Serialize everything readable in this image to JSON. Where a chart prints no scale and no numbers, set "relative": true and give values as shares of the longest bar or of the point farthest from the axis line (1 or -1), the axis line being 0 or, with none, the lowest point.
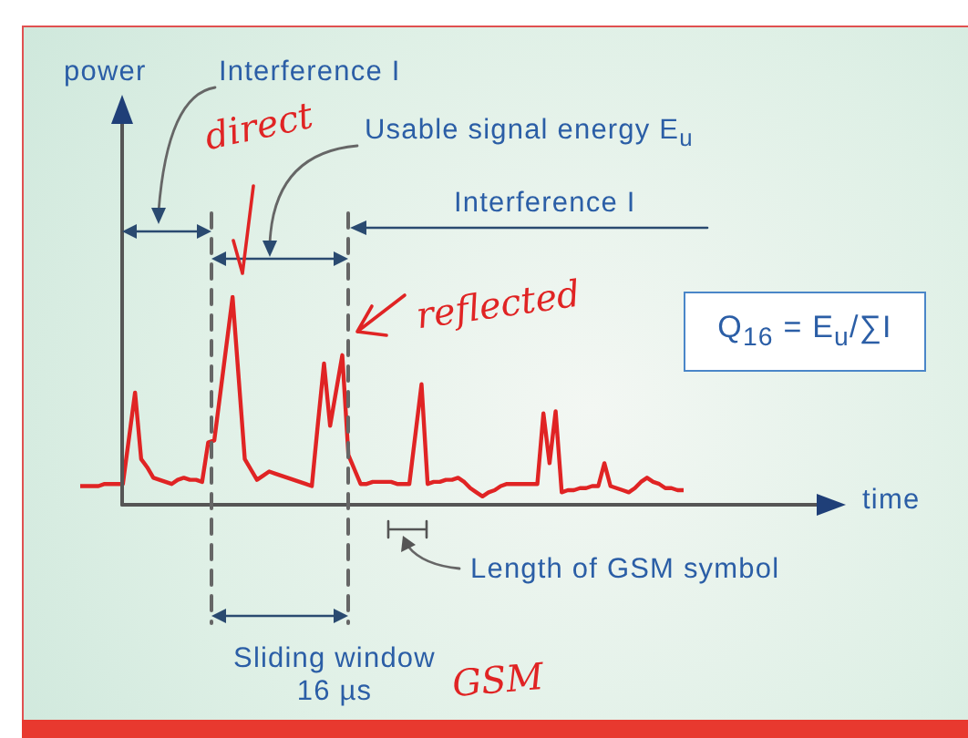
{
  "chart_data": {
    "type": "line",
    "relative": true,
    "annotations": [
      "power",
      "time",
      "Interference I",
      "Usable signal energy E$_{u}$",
      "Interference I",
      "Q$_{16}$ = E$_{u}$/∑I",
      "Length of GSM symbol",
      "Sliding window\n16 µs",
      "direct",
      "reflected",
      "GSM"
    ],
    "categories": [
      null,
      null,
      null,
      null,
      null,
      null,
      null,
      null,
      null,
      null,
      null,
      null,
      null,
      null,
      null,
      null,
      null,
      null,
      null,
      null,
      null,
      null,
      null,
      null,
      null,
      null,
      null,
      null,
      null,
      null,
      null,
      null,
      null,
      null,
      null,
      null,
      null,
      null,
      null,
      null,
      null,
      null,
      null,
      null,
      null,
      null,
      null,
      null,
      null,
      null,
      null,
      null,
      null,
      null,
      null,
      null,
      null,
      null,
      null,
      null,
      null,
      null,
      null,
      null,
      null,
      null,
      null,
      null,
      null,
      null,
      null,
      null,
      null,
      null,
      null,
      null,
      null,
      null,
      null,
      null,
      null,
      null,
      null,
      null,
      null,
      null,
      null,
      null,
      null,
      null,
      null,
      null,
      null,
      null,
      null,
      null,
      null,
      null,
      null,
      null
    ],
    "series": [
      {
        "color": "#e02424",
        "values": [
          0.09,
          0.09,
          0.09,
          0.09,
          0.1,
          0.1,
          0.1,
          0.1,
          0.32,
          0.54,
          0.22,
          0.18,
          0.13,
          0.12,
          0.11,
          0.1,
          0.12,
          0.13,
          0.12,
          0.12,
          0.11,
          0.3,
          0.31,
          0.54,
          0.77,
          1.0,
          0.61,
          0.22,
          0.17,
          0.12,
          0.14,
          0.16,
          0.15,
          0.14,
          0.13,
          0.12,
          0.11,
          0.1,
          0.09,
          0.39,
          0.68,
          0.38,
          0.55,
          0.72,
          0.24,
          0.17,
          0.1,
          0.1,
          0.11,
          0.11,
          0.11,
          0.11,
          0.1,
          0.1,
          0.1,
          0.34,
          0.58,
          0.1,
          0.11,
          0.11,
          0.12,
          0.12,
          0.13,
          0.11,
          0.08,
          0.06,
          0.04,
          0.06,
          0.07,
          0.09,
          0.1,
          0.1,
          0.1,
          0.1,
          0.1,
          0.1,
          0.44,
          0.2,
          0.45,
          0.06,
          0.07,
          0.07,
          0.08,
          0.08,
          0.09,
          0.09,
          0.2,
          0.09,
          0.08,
          0.07,
          0.06,
          0.08,
          0.11,
          0.13,
          0.11,
          0.1,
          0.08,
          0.08,
          0.07,
          0.07
        ]
      }
    ]
  }
}
